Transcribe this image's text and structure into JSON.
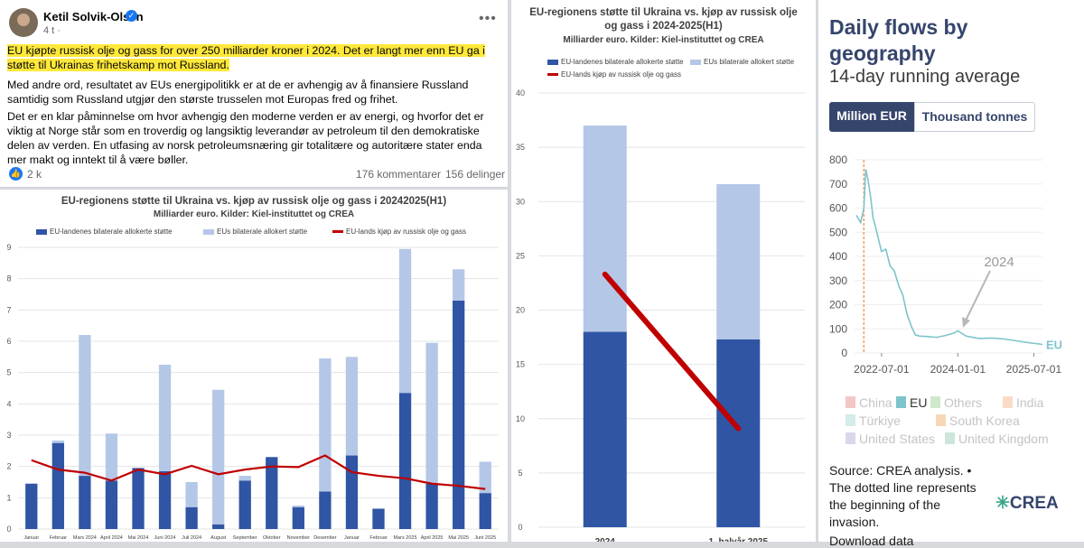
{
  "post": {
    "author": "Ketil Solvik-Olsen",
    "time": "4 t ·",
    "highlight": "EU kjøpte russisk olje og gass for over 250 milliarder kroner i 2024. Det er langt mer enn EU ga i støtte til Ukrainas frihetskamp mot Russland.",
    "p2": "Med andre ord, resultatet av EUs energipolitikk er at de er avhengig av å finansiere Russland samtidig som Russland utgjør den største trusselen mot Europas fred og frihet.",
    "p3": "Det er en klar påminnelse om hvor avhengig den moderne verden er av energi, og hvorfor det er viktig at Norge står som en troverdig og langsiktig leverandør av petroleum til den demokratiske delen av verden. En utfasing av norsk petroleumsnæring gir totalitære og autoritære stater enda mer makt og inntekt til å være bøller.",
    "likes": "2 k",
    "comments": "176 kommentarer",
    "shares": "156 delinger"
  },
  "colors": {
    "bilateral": "#2f55a4",
    "eu_alloc": "#b4c7e7",
    "purchases": "#c00000",
    "crea_line": "#7ec4cc",
    "crea_navy": "#35456c"
  },
  "chart_data": [
    {
      "type": "bar",
      "stacked": true,
      "title": "EU-regionens støtte til Ukraina vs. kjøp av russisk olje og gass i 20242025(H1)",
      "subtitle": "Milliarder euro. Kilder: Kiel-instituttet og CREA",
      "categories": [
        "Januar 2024",
        "Februar 2024",
        "Mars 2024",
        "April 2024",
        "Mai 2024",
        "Juni 2024",
        "Juli 2024",
        "August 2024",
        "September 2024",
        "Oktober 2024",
        "November 2024",
        "Desember 2024",
        "Januar 2025",
        "Februar 2025",
        "Mars 2025",
        "April 2025",
        "Mai 2025",
        "Juni 2025"
      ],
      "tick_labels": [
        "Januar",
        "Februar",
        "Mars 2024",
        "April 2024",
        "Mai 2024",
        "Juni 2024",
        "Juli 2024",
        "August",
        "September",
        "Oktober",
        "November",
        "Desember",
        "Januar",
        "Februar",
        "Mars 2025",
        "April 2025",
        "Mai 2025",
        "Juni 2025"
      ],
      "series": [
        {
          "name": "EU-landenes bilaterale allokerte støtte",
          "type": "bar",
          "values": [
            1.45,
            2.75,
            1.7,
            1.55,
            1.95,
            1.85,
            0.7,
            0.15,
            1.55,
            2.3,
            0.7,
            1.2,
            2.35,
            0.65,
            4.35,
            1.45,
            7.3,
            1.15
          ]
        },
        {
          "name": "EUs bilaterale allokert støtte",
          "type": "bar",
          "values": [
            0,
            0.08,
            4.5,
            1.5,
            0,
            3.4,
            0.8,
            4.3,
            0.15,
            0,
            0.05,
            4.25,
            3.15,
            0,
            4.6,
            4.5,
            1.0,
            1.0
          ]
        },
        {
          "name": "EU-lands kjøp av russisk olje og gass",
          "type": "line",
          "values": [
            2.2,
            1.9,
            1.8,
            1.55,
            1.9,
            1.75,
            2.02,
            1.75,
            1.9,
            2.0,
            1.98,
            2.35,
            1.82,
            1.7,
            1.62,
            1.45,
            1.38,
            1.28
          ]
        }
      ],
      "y_ticks": [
        "0",
        "1",
        "2",
        "3",
        "4",
        "5",
        "6",
        "7",
        "8",
        "9"
      ],
      "ylim": [
        0,
        9
      ],
      "grid": true,
      "legend_position": "top"
    },
    {
      "type": "bar",
      "stacked": true,
      "title": "EU-regionens støtte til Ukraina vs. kjøp av russisk olje og gass i 2024-2025(H1)",
      "subtitle": "Milliarder euro. Kilder: Kiel-instituttet og CREA",
      "categories": [
        "2024",
        "1. halvår 2025"
      ],
      "series": [
        {
          "name": "EU-landenes bilaterale allokerte støtte",
          "type": "bar",
          "values": [
            18.0,
            17.3
          ]
        },
        {
          "name": "EUs bilaterale allokert støtte",
          "type": "bar",
          "values": [
            19.0,
            14.3
          ]
        },
        {
          "name": "EU-lands kjøp av russisk olje og gass",
          "type": "line",
          "values": [
            23.3,
            9.1
          ]
        }
      ],
      "y_ticks": [
        "0",
        "5",
        "10",
        "15",
        "20",
        "25",
        "30",
        "35",
        "40"
      ],
      "ylim": [
        0,
        40
      ],
      "grid": true,
      "legend_position": "top-left"
    },
    {
      "type": "line",
      "title": "Daily flows by geography",
      "subtitle": "14-day running average",
      "toggle": [
        "Million EUR",
        "Thousand tonnes"
      ],
      "series_label": "EU",
      "annotation": "2024",
      "x_ticks": [
        "2022-07-01",
        "2024-01-01",
        "2025-07-01"
      ],
      "y_ticks": [
        "0",
        "100",
        "200",
        "300",
        "400",
        "500",
        "600",
        "700",
        "800"
      ],
      "ylim": [
        0,
        800
      ],
      "x": [
        "2022-01-01",
        "2022-02-01",
        "2022-02-24",
        "2022-03-10",
        "2022-03-25",
        "2022-04-15",
        "2022-05-01",
        "2022-05-20",
        "2022-06-10",
        "2022-07-01",
        "2022-08-01",
        "2022-09-01",
        "2022-10-01",
        "2022-11-01",
        "2022-12-01",
        "2023-01-01",
        "2023-02-01",
        "2023-03-01",
        "2023-04-01",
        "2023-06-01",
        "2023-08-01",
        "2023-10-01",
        "2023-12-01",
        "2024-01-01",
        "2024-03-01",
        "2024-06-01",
        "2024-09-01",
        "2024-12-01",
        "2025-03-01",
        "2025-06-01",
        "2025-08-01",
        "2025-09-01"
      ],
      "values": [
        570,
        540,
        600,
        760,
        720,
        640,
        560,
        520,
        470,
        420,
        430,
        360,
        340,
        280,
        240,
        160,
        110,
        75,
        70,
        68,
        65,
        72,
        82,
        92,
        70,
        60,
        62,
        58,
        50,
        42,
        38,
        35
      ],
      "legend": [
        "China",
        "EU",
        "Others",
        "India",
        "Türkiye",
        "South Korea",
        "United States",
        "United Kingdom"
      ],
      "legend_colors": [
        "#f4c7c7",
        "#7ec4cc",
        "#cfe8cc",
        "#f9dcc8",
        "#d3ecec",
        "#f7d7b8",
        "#d9d8ea",
        "#cde6da"
      ],
      "source": "Source: CREA analysis. • The dotted line represents the beginning of the invasion.",
      "download": "Download data",
      "logo": "CREA"
    }
  ]
}
